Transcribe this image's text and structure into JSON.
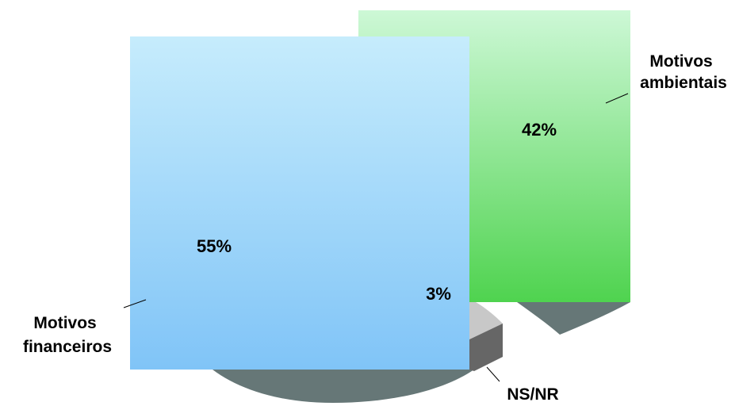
{
  "chart_data": {
    "type": "pie",
    "style": "3d-exploded",
    "title": "",
    "slices": [
      {
        "label": "Motivos financeiros",
        "value": 55,
        "value_label": "55%",
        "color": "#8fccf7"
      },
      {
        "label": "Motivos ambientais",
        "value": 42,
        "value_label": "42%",
        "color": "#7ee38a"
      },
      {
        "label": "NS/NR",
        "value": 3,
        "value_label": "3%",
        "color": "#c4c4c4"
      }
    ],
    "legend": "none"
  },
  "colors": {
    "financeiros_top": "#c6ecfc",
    "financeiros_bottom": "#80c4f7",
    "ambientais_top": "#cdf8d6",
    "ambientais_bottom": "#4fd34f",
    "side_dark": "#667777",
    "nsnr_top": "#c8c8c8",
    "nsnr_side": "#666666"
  }
}
